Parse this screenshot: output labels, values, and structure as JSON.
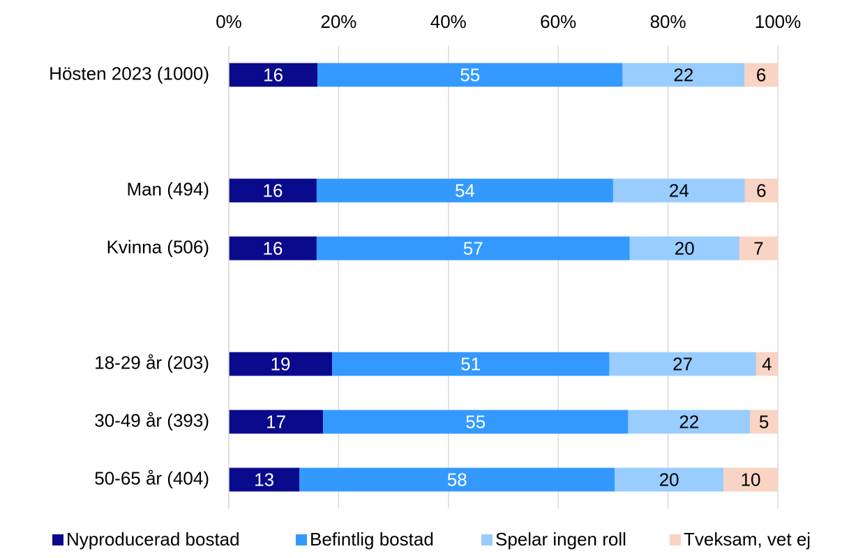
{
  "chart_data": {
    "type": "stacked_bar_horizontal",
    "stacking": "percent",
    "categories": [
      "Hösten 2023 (1000)",
      null,
      "Man (494)",
      "Kvinna (506)",
      null,
      "18-29 år (203)",
      "30-49 år (393)",
      "50-65 år (404)"
    ],
    "series": [
      {
        "name": "Nyproducerad bostad",
        "color": "#0a0a8c",
        "label_color": "#ffffff",
        "values": [
          16,
          null,
          16,
          16,
          null,
          19,
          17,
          13
        ]
      },
      {
        "name": "Befintlig bostad",
        "color": "#3399ff",
        "label_color": "#ffffff",
        "values": [
          55,
          null,
          54,
          57,
          null,
          51,
          55,
          58
        ]
      },
      {
        "name": "Spelar ingen roll",
        "color": "#99ccff",
        "label_color": "#000000",
        "values": [
          22,
          null,
          24,
          20,
          null,
          27,
          22,
          20
        ]
      },
      {
        "name": "Tveksam, vet ej",
        "color": "#f9d3c3",
        "label_color": "#000000",
        "values": [
          6,
          null,
          6,
          7,
          null,
          4,
          5,
          10
        ]
      }
    ],
    "xlim": [
      0,
      100
    ],
    "xticks": [
      {
        "value": 0,
        "label": "0%"
      },
      {
        "value": 20,
        "label": "20%"
      },
      {
        "value": 40,
        "label": "40%"
      },
      {
        "value": 60,
        "label": "60%"
      },
      {
        "value": 80,
        "label": "80%"
      },
      {
        "value": 100,
        "label": "100%"
      }
    ],
    "grid": true,
    "legend": "bottom"
  }
}
